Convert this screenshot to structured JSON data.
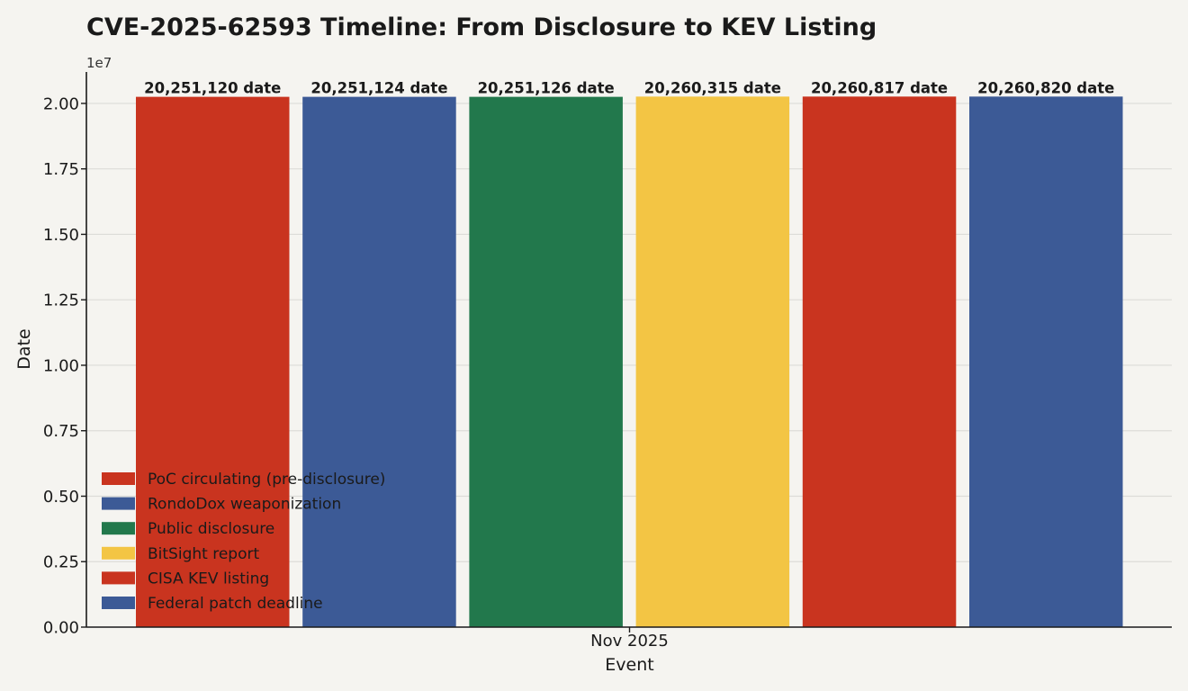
{
  "chart_data": {
    "type": "bar",
    "title": "CVE-2025-62593 Timeline: From Disclosure to KEV Listing",
    "xlabel": "Event",
    "ylabel": "Date",
    "x_tick_label": "Nov 2025",
    "y_offset_label": "1e7",
    "ylim": [
      0,
      21200000
    ],
    "y_ticks": [
      0,
      2500000,
      5000000,
      7500000,
      10000000,
      12500000,
      15000000,
      17500000,
      20000000
    ],
    "y_tick_labels": [
      "0.00",
      "0.25",
      "0.50",
      "0.75",
      "1.00",
      "1.25",
      "1.50",
      "1.75",
      "2.00"
    ],
    "grid": "horizontal",
    "legend_position": "lower-left",
    "categories": [
      "PoC circulating (pre-disclosure)",
      "RondoDox weaponization",
      "Public disclosure",
      "BitSight report",
      "CISA KEV listing",
      "Federal patch deadline"
    ],
    "values": [
      20251120,
      20251124,
      20251126,
      20260315,
      20260817,
      20260820
    ],
    "value_labels": [
      "20,251,120 date",
      "20,251,124 date",
      "20,251,126 date",
      "20,260,315 date",
      "20,260,817 date",
      "20,260,820 date"
    ],
    "colors": [
      "#c9341f",
      "#3c5a96",
      "#22784c",
      "#f3c544",
      "#c9341f",
      "#3c5a96"
    ]
  }
}
